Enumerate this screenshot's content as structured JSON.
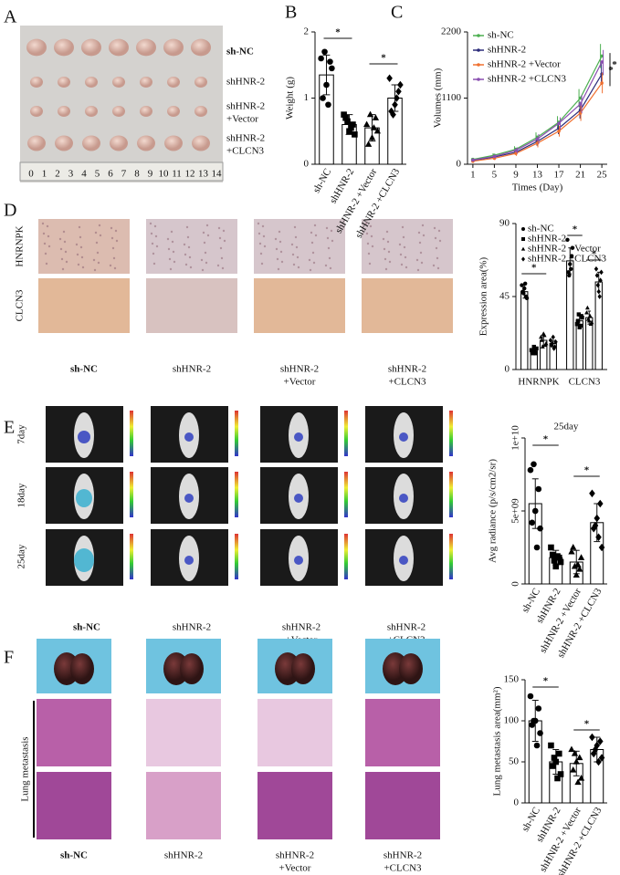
{
  "figure": {
    "panels": [
      "A",
      "B",
      "C",
      "D",
      "E",
      "F"
    ],
    "groups": [
      [
        "sh-NC"
      ],
      [
        "shHNR-2"
      ],
      [
        "shHNR-2",
        "+Vector"
      ],
      [
        "shHNR-2",
        "+CLCN3"
      ]
    ],
    "stains": [
      "HNRNPK",
      "CLCN3"
    ],
    "days": [
      "7day",
      "18day",
      "25day"
    ],
    "lung": "Lung metastasis",
    "ruler": [
      0,
      1,
      2,
      3,
      4,
      5,
      6,
      7,
      8,
      9,
      10,
      11,
      12,
      13,
      14
    ]
  },
  "chart_data": [
    {
      "type": "bar",
      "ylabel": "Weight (g)",
      "categories": [
        "sh-NC",
        "shHNR-2",
        "shHNR-2 +Vector",
        "shHNR-2 +CLCN3"
      ],
      "values": [
        1.35,
        0.6,
        0.55,
        1.0
      ],
      "errors": [
        0.3,
        0.15,
        0.2,
        0.2
      ],
      "points": [
        [
          1.6,
          1.55,
          1.2,
          1.0,
          1.45,
          0.9,
          1.7
        ],
        [
          0.75,
          0.6,
          0.5,
          0.7,
          0.45,
          0.55,
          0.65
        ],
        [
          0.6,
          0.7,
          0.4,
          0.3,
          0.5,
          0.55,
          0.75
        ],
        [
          1.3,
          1.1,
          0.9,
          0.8,
          1.2,
          1.0,
          0.75
        ]
      ],
      "ylim": [
        0,
        2
      ],
      "yticks": [
        0,
        1,
        2
      ],
      "annotations": [
        "*",
        "*"
      ]
    },
    {
      "type": "line",
      "ylabel": "Volumes (mm)",
      "xlabel": "Times (Day)",
      "x": [
        1,
        5,
        9,
        13,
        17,
        21,
        25
      ],
      "xlim": [
        0,
        26
      ],
      "xticks": [
        1,
        5,
        9,
        13,
        17,
        21,
        25
      ],
      "ylim": [
        0,
        2200
      ],
      "yticks": [
        0,
        1100,
        2200
      ],
      "series": [
        {
          "name": "sh-NC",
          "color": "#4caf50",
          "values": [
            80,
            150,
            250,
            450,
            700,
            1100,
            1800
          ],
          "errors": [
            20,
            30,
            50,
            80,
            100,
            150,
            200
          ]
        },
        {
          "name": "shHNR-2",
          "color": "#2c2c7a",
          "values": [
            60,
            120,
            200,
            380,
            600,
            900,
            1500
          ],
          "errors": [
            20,
            30,
            40,
            70,
            100,
            140,
            180
          ]
        },
        {
          "name": "shHNR-2 +Vector",
          "color": "#f07030",
          "values": [
            50,
            100,
            180,
            350,
            550,
            850,
            1350
          ],
          "errors": [
            20,
            30,
            40,
            70,
            90,
            130,
            170
          ]
        },
        {
          "name": "shHNR-2 +CLCN3",
          "color": "#8a4fb0",
          "values": [
            70,
            130,
            230,
            420,
            680,
            1000,
            1700
          ],
          "errors": [
            20,
            30,
            50,
            80,
            100,
            150,
            200
          ]
        }
      ],
      "annotations": [
        "*",
        "*"
      ]
    },
    {
      "type": "bar",
      "ylabel": "Expression area(%)",
      "categories": [
        "HNRNPK",
        "CLCN3"
      ],
      "ylim": [
        0,
        90
      ],
      "yticks": [
        0,
        45,
        90
      ],
      "series": [
        {
          "name": "sh-NC",
          "values": [
            48,
            67
          ],
          "errors": [
            4,
            8
          ],
          "points": [
            [
              52,
              45,
              50,
              48,
              44,
              53,
              47
            ],
            [
              80,
              70,
              65,
              60,
              75,
              62,
              58
            ]
          ]
        },
        {
          "name": "shHNR-2",
          "values": [
            12,
            30
          ],
          "errors": [
            2,
            3
          ],
          "points": [
            [
              12,
              10,
              14,
              11,
              13,
              12,
              10
            ],
            [
              28,
              33,
              26,
              30,
              32,
              27,
              34
            ]
          ]
        },
        {
          "name": "shHNR-2 +Vector",
          "values": [
            18,
            32
          ],
          "errors": [
            3,
            4
          ],
          "points": [
            [
              20,
              15,
              22,
              18,
              16,
              21,
              14
            ],
            [
              35,
              28,
              30,
              38,
              29,
              33,
              31
            ]
          ]
        },
        {
          "name": "shHNR-2 +CLCN3",
          "values": [
            16,
            54
          ],
          "errors": [
            2,
            6
          ],
          "points": [
            [
              18,
              14,
              20,
              15,
              17,
              13,
              16
            ],
            [
              62,
              55,
              48,
              58,
              60,
              45,
              52
            ]
          ]
        }
      ],
      "annotations": [
        "*",
        "*",
        "*"
      ]
    },
    {
      "type": "bar",
      "title": "25day",
      "ylabel": "Avg radiance (p/s/cm2/sr)",
      "categories": [
        "sh-NC",
        "shHNR-2",
        "shHNR-2 +Vector",
        "shHNR-2 +CLCN3"
      ],
      "values": [
        5500000000.0,
        1800000000.0,
        1500000000.0,
        4200000000.0
      ],
      "errors": [
        1700000000.0,
        500000000.0,
        800000000.0,
        1300000000.0
      ],
      "points": [
        [
          7800000000.0,
          6500000000.0,
          5000000000.0,
          4200000000.0,
          3800000000.0,
          2500000000.0,
          8200000000.0
        ],
        [
          2500000000.0,
          1800000000.0,
          1200000000.0,
          2000000000.0,
          1500000000.0,
          1900000000.0,
          1600000000.0
        ],
        [
          2200000000.0,
          1000000000.0,
          600000000.0,
          2500000000.0,
          1800000000.0,
          1300000000.0,
          1200000000.0
        ],
        [
          6200000000.0,
          5500000000.0,
          4500000000.0,
          3800000000.0,
          2500000000.0,
          3200000000.0,
          4000000000.0
        ]
      ],
      "ylim": [
        0,
        10000000000.0
      ],
      "yticks": [
        0,
        {
          "value": 5000000000.0,
          "label": "5e+09"
        },
        {
          "value": 10000000000.0,
          "label": "1e+10"
        }
      ],
      "annotations": [
        "*",
        "*"
      ]
    },
    {
      "type": "bar",
      "ylabel": "Lung metastasis area(mm²)",
      "categories": [
        "sh-NC",
        "shHNR-2",
        "shHNR-2 +Vector",
        "shHNR-2 +CLCN3"
      ],
      "values": [
        100,
        50,
        48,
        65
      ],
      "errors": [
        25,
        15,
        15,
        15
      ],
      "points": [
        [
          130,
          115,
          100,
          95,
          85,
          70,
          100
        ],
        [
          70,
          60,
          50,
          45,
          35,
          30,
          55
        ],
        [
          65,
          55,
          50,
          40,
          30,
          25,
          60
        ],
        [
          80,
          75,
          70,
          60,
          55,
          50,
          65
        ]
      ],
      "ylim": [
        0,
        150
      ],
      "yticks": [
        0,
        50,
        100,
        150
      ],
      "annotations": [
        "*",
        "*"
      ]
    }
  ]
}
